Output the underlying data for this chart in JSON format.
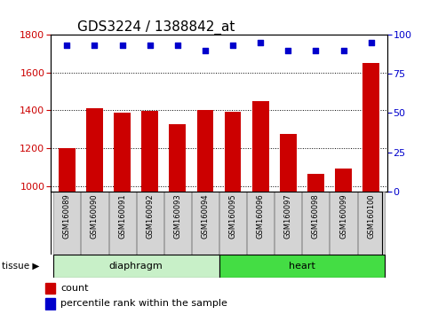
{
  "title": "GDS3224 / 1388842_at",
  "samples": [
    "GSM160089",
    "GSM160090",
    "GSM160091",
    "GSM160092",
    "GSM160093",
    "GSM160094",
    "GSM160095",
    "GSM160096",
    "GSM160097",
    "GSM160098",
    "GSM160099",
    "GSM160100"
  ],
  "counts": [
    1200,
    1410,
    1385,
    1395,
    1325,
    1400,
    1390,
    1450,
    1275,
    1065,
    1090,
    1650
  ],
  "percentiles": [
    93,
    93,
    93,
    93,
    93,
    90,
    93,
    95,
    90,
    90,
    90,
    95
  ],
  "tissue_groups": [
    {
      "label": "diaphragm",
      "start": 0,
      "end": 6,
      "color": "#c8f0c8"
    },
    {
      "label": "heart",
      "start": 6,
      "end": 12,
      "color": "#44dd44"
    }
  ],
  "ylim_left": [
    970,
    1800
  ],
  "ylim_right": [
    0,
    100
  ],
  "yticks_left": [
    1000,
    1200,
    1400,
    1600,
    1800
  ],
  "yticks_right": [
    0,
    25,
    50,
    75,
    100
  ],
  "bar_color": "#cc0000",
  "scatter_color": "#0000cc",
  "bar_width": 0.6,
  "title_fontsize": 11,
  "axis_label_color_left": "#cc0000",
  "axis_label_color_right": "#0000cc",
  "tick_label_fontsize": 8,
  "sample_label_fontsize": 6,
  "tissue_label_fontsize": 8,
  "legend_fontsize": 8
}
